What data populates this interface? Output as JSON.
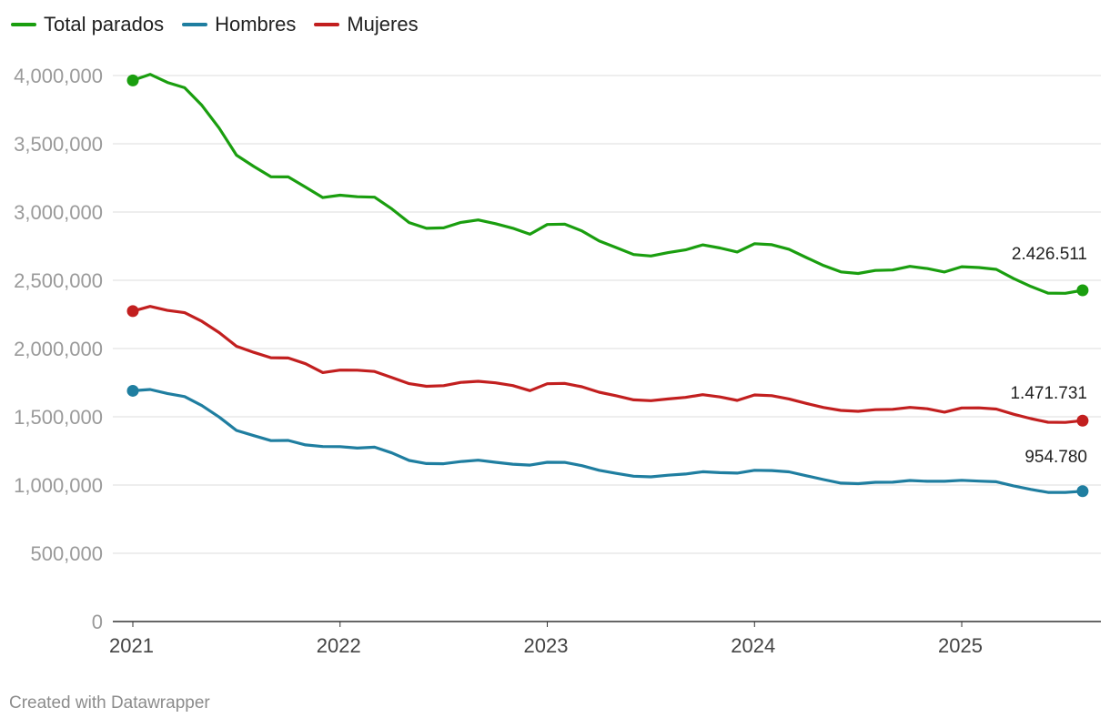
{
  "chart_data": {
    "type": "line",
    "title": "",
    "xlabel": "",
    "ylabel": "",
    "ylim": [
      0,
      4000000
    ],
    "y_ticks": [
      {
        "value": 0,
        "label": "0"
      },
      {
        "value": 500000,
        "label": "500,000"
      },
      {
        "value": 1000000,
        "label": "1,000,000"
      },
      {
        "value": 1500000,
        "label": "1,500,000"
      },
      {
        "value": 2000000,
        "label": "2,000,000"
      },
      {
        "value": 2500000,
        "label": "2,500,000"
      },
      {
        "value": 3000000,
        "label": "3,000,000"
      },
      {
        "value": 3500000,
        "label": "3,500,000"
      },
      {
        "value": 4000000,
        "label": "4,000,000"
      }
    ],
    "x_start": "2021-01",
    "x_ticks": [
      {
        "index": 0,
        "label": "2021"
      },
      {
        "index": 12,
        "label": "2022"
      },
      {
        "index": 24,
        "label": "2023"
      },
      {
        "index": 36,
        "label": "2024"
      },
      {
        "index": 48,
        "label": "2025"
      }
    ],
    "legend_position": "top-left",
    "series": [
      {
        "name": "Total parados",
        "color": "#1a9e0f",
        "end_label": "2.426.511",
        "values": [
          3964353,
          4008789,
          3949640,
          3910628,
          3781250,
          3614339,
          3416498,
          3333915,
          3257802,
          3257068,
          3182687,
          3105905,
          3123078,
          3111684,
          3108763,
          3022503,
          2922991,
          2880582,
          2883812,
          2924240,
          2941919,
          2914892,
          2881380,
          2837653,
          2908397,
          2911015,
          2862260,
          2788370,
          2739110,
          2688842,
          2677874,
          2702700,
          2722468,
          2759404,
          2736361,
          2707456,
          2767860,
          2760408,
          2727003,
          2666500,
          2607850,
          2561067,
          2550237,
          2572121,
          2575285,
          2602054,
          2586018,
          2560718,
          2599443,
          2593449,
          2580138,
          2512718,
          2454883,
          2405963,
          2404606,
          2426511
        ]
      },
      {
        "name": "Hombres",
        "color": "#1f7ea0",
        "end_label": "954.780",
        "values": [
          1690355,
          1700213,
          1670541,
          1648010,
          1582104,
          1497836,
          1400098,
          1362017,
          1325406,
          1326432,
          1294316,
          1281977,
          1281042,
          1270567,
          1277082,
          1235094,
          1180105,
          1157128,
          1155779,
          1172011,
          1182006,
          1166520,
          1152410,
          1146087,
          1166716,
          1166118,
          1142110,
          1108117,
          1085100,
          1064978,
          1060064,
          1072090,
          1080450,
          1097390,
          1090870,
          1087140,
          1107710,
          1105830,
          1096640,
          1068310,
          1039980,
          1014190,
          1009920,
          1020090,
          1020770,
          1033230,
          1027380,
          1027030,
          1034620,
          1028420,
          1023740,
          994290,
          967990,
          945800,
          946010,
          954780
        ]
      },
      {
        "name": "Mujeres",
        "color": "#c21f1f",
        "end_label": "1.471.731",
        "values": [
          2273998,
          2308576,
          2279099,
          2262618,
          2199146,
          2116503,
          2016400,
          1971898,
          1932396,
          1930636,
          1888371,
          1823928,
          1842036,
          1841117,
          1831681,
          1787409,
          1742886,
          1723454,
          1728033,
          1752229,
          1759913,
          1748372,
          1728970,
          1691566,
          1741681,
          1744897,
          1720150,
          1680253,
          1654010,
          1623864,
          1617810,
          1630610,
          1642018,
          1662014,
          1645491,
          1620316,
          1660150,
          1654578,
          1630363,
          1598190,
          1567870,
          1546877,
          1540317,
          1552031,
          1554515,
          1568824,
          1558638,
          1533688,
          1564823,
          1565029,
          1556398,
          1518428,
          1486893,
          1460163,
          1458596,
          1471731
        ]
      }
    ]
  },
  "footer": {
    "credit": "Created with Datawrapper"
  }
}
